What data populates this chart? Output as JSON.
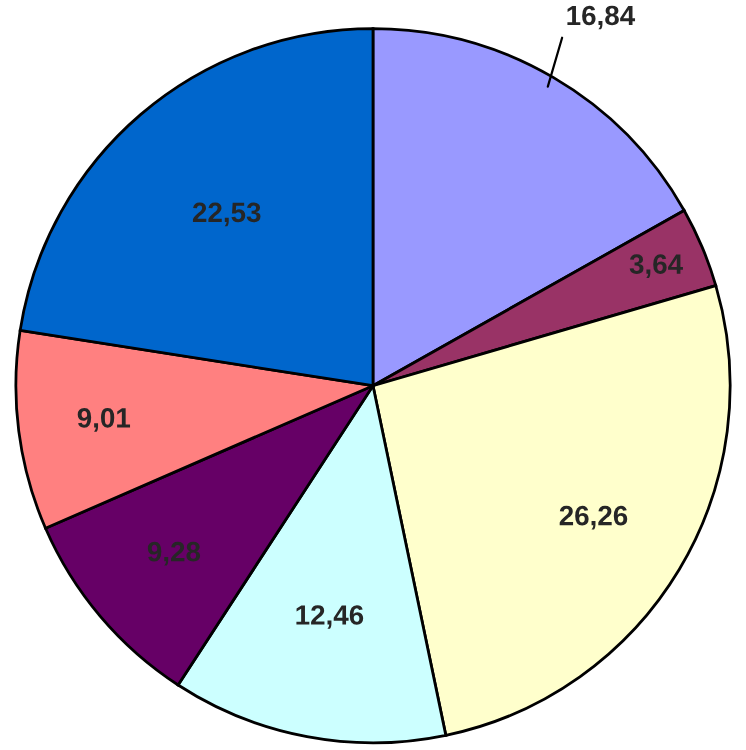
{
  "chart_data": {
    "type": "pie",
    "categories": [
      null,
      null,
      null,
      null,
      null,
      null,
      null
    ],
    "values": [
      16.84,
      3.64,
      26.26,
      12.46,
      9.28,
      9.01,
      22.53
    ],
    "value_labels": [
      "16,84",
      "3,64",
      "26,26",
      "12,46",
      "9,28",
      "9,01",
      "22,53"
    ],
    "colors": [
      "#9999ff",
      "#993366",
      "#ffffcc",
      "#ccffff",
      "#660066",
      "#ff8080",
      "#0066cc"
    ],
    "legend": false
  }
}
